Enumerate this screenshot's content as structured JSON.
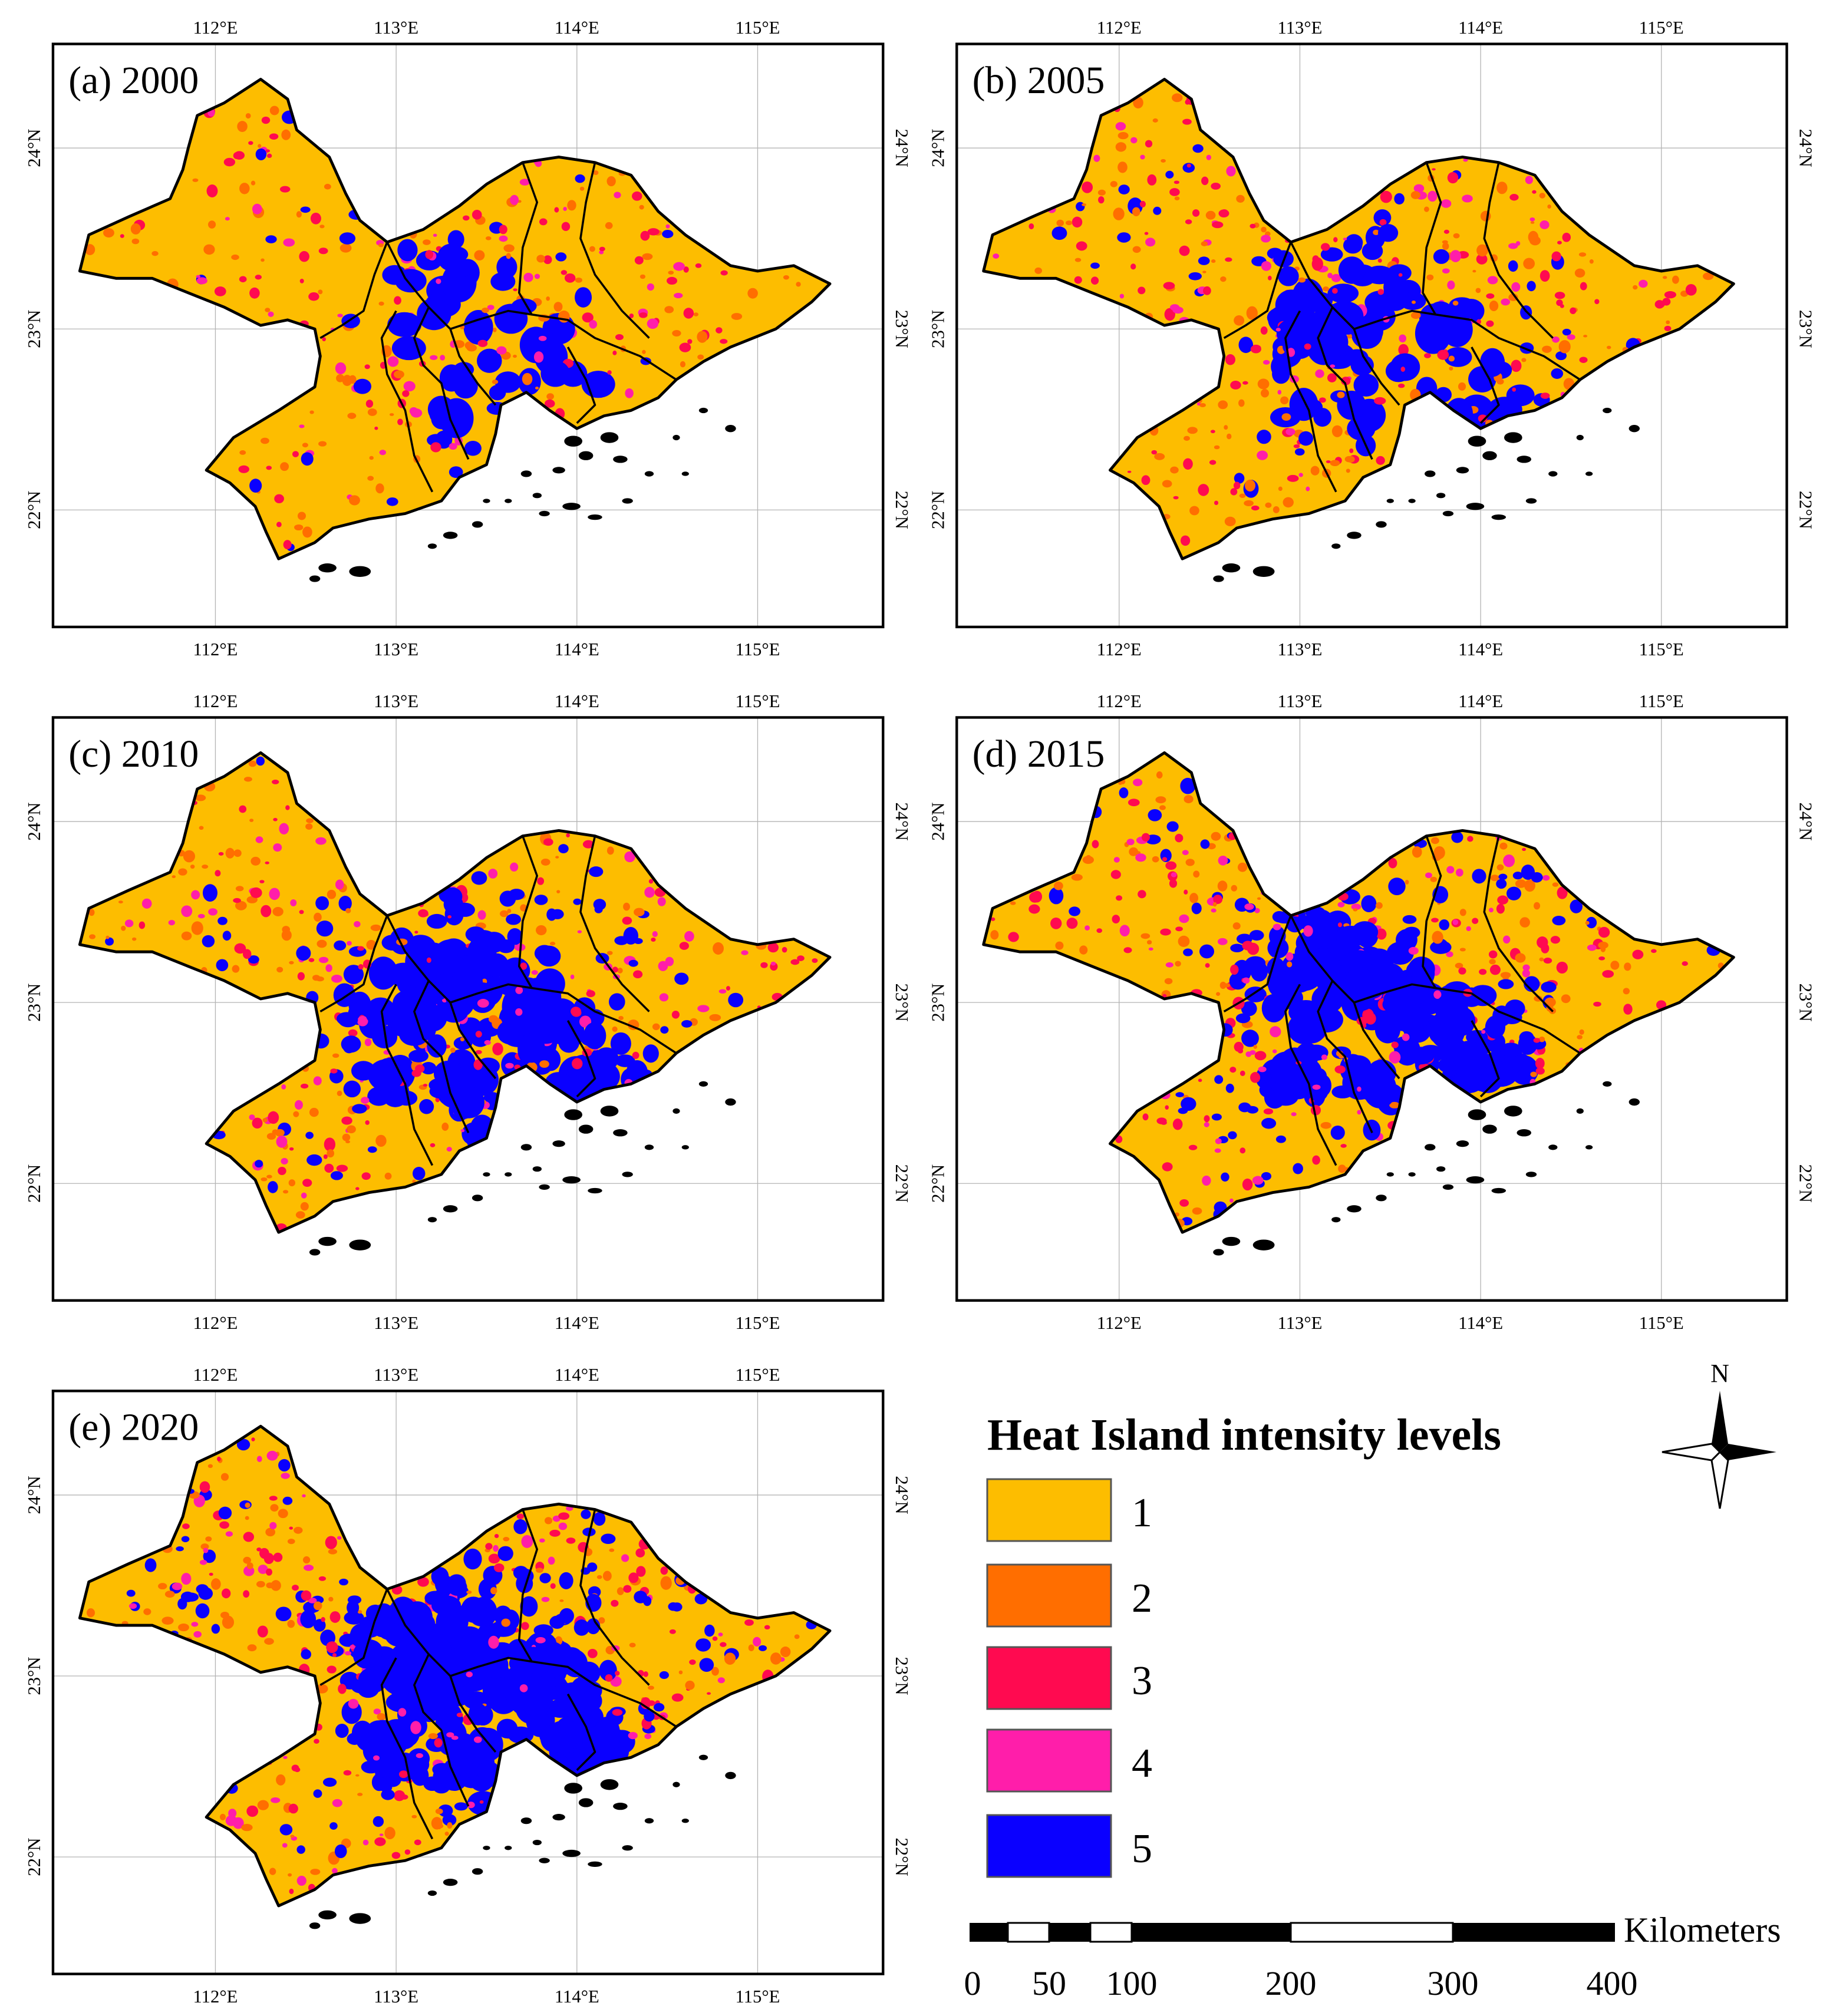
{
  "figure": {
    "panels": [
      {
        "label": "(a) 2000",
        "year": 2000,
        "level5_share": 0.07,
        "level3_share": 0.1,
        "level4_share": 0.07,
        "level2_share": 0.1
      },
      {
        "label": "(b) 2005",
        "year": 2005,
        "level5_share": 0.15,
        "level3_share": 0.13,
        "level4_share": 0.1,
        "level2_share": 0.12
      },
      {
        "label": "(c) 2010",
        "year": 2010,
        "level5_share": 0.26,
        "level3_share": 0.15,
        "level4_share": 0.1,
        "level2_share": 0.12
      },
      {
        "label": "(d) 2015",
        "year": 2015,
        "level5_share": 0.3,
        "level3_share": 0.16,
        "level4_share": 0.11,
        "level2_share": 0.12
      },
      {
        "label": "(e) 2020",
        "year": 2020,
        "level5_share": 0.42,
        "level3_share": 0.14,
        "level4_share": 0.1,
        "level2_share": 0.12
      }
    ],
    "lon_labels": [
      "112°E",
      "113°E",
      "114°E",
      "115°E"
    ],
    "lat_labels": [
      "24°N",
      "23°N",
      "22°N"
    ]
  },
  "legend": {
    "title": "Heat Island intensity levels",
    "items": [
      {
        "label": "1",
        "color": "#FDBD00"
      },
      {
        "label": "2",
        "color": "#FF6E00"
      },
      {
        "label": "3",
        "color": "#FF0A50"
      },
      {
        "label": "4",
        "color": "#FF1EAA"
      },
      {
        "label": "5",
        "color": "#0A00FF"
      }
    ]
  },
  "north_arrow": {
    "label": "N",
    "icon": "north-arrow-icon"
  },
  "scale_bar": {
    "unit_label": "Kilometers",
    "tick_labels": [
      "0",
      "50",
      "100",
      "200",
      "300",
      "400"
    ]
  },
  "colors": {
    "coast": "#000000",
    "grid": "#b4b4b4",
    "frame": "#000000"
  }
}
